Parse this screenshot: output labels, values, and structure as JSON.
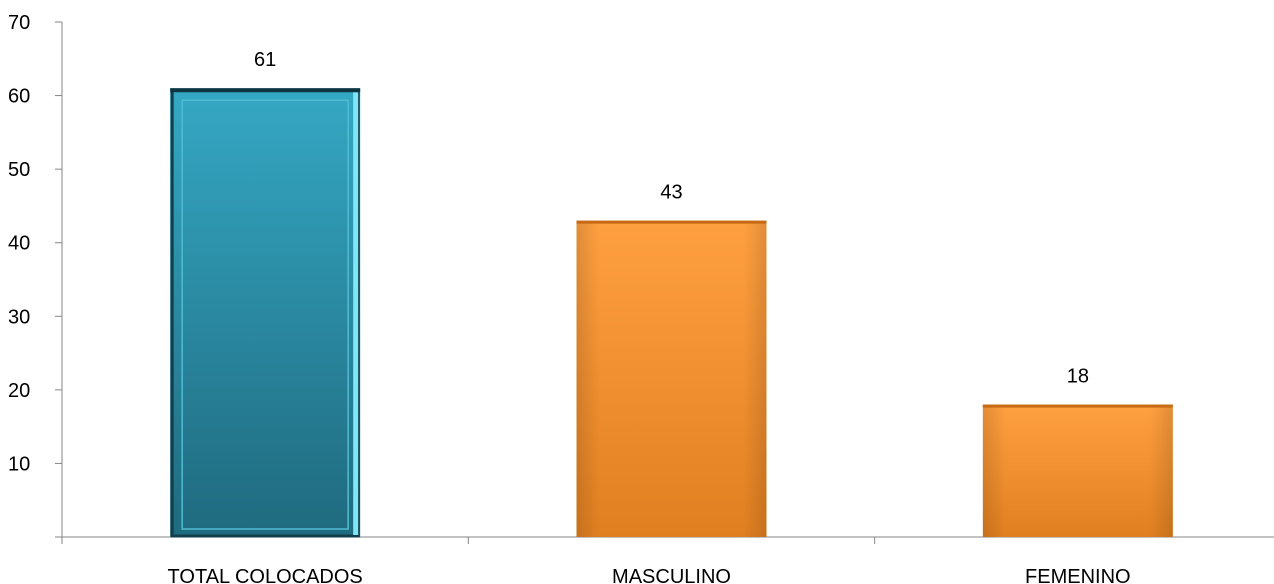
{
  "chart_data": {
    "type": "bar",
    "categories": [
      "TOTAL COLOCADOS",
      "MASCULINO",
      "FEMENINO"
    ],
    "values": [
      61,
      43,
      18
    ],
    "data_labels": [
      "61",
      "43",
      "18"
    ],
    "yticks": [
      10,
      20,
      30,
      40,
      50,
      60,
      70
    ],
    "ylim": [
      0,
      70
    ],
    "title": "",
    "xlabel": "",
    "ylabel": "",
    "grid": false,
    "legend": "none",
    "colors": {
      "total_bar": "#2a8ba3",
      "total_bar_light": "#35a8c4",
      "total_bar_dark": "#1f6a7e",
      "total_bar_edge": "#7fe6f5",
      "gender_bar": "#f79a36",
      "gender_bar_light": "#ffb45a",
      "gender_bar_dark": "#d9781c",
      "axis": "#868686"
    }
  }
}
